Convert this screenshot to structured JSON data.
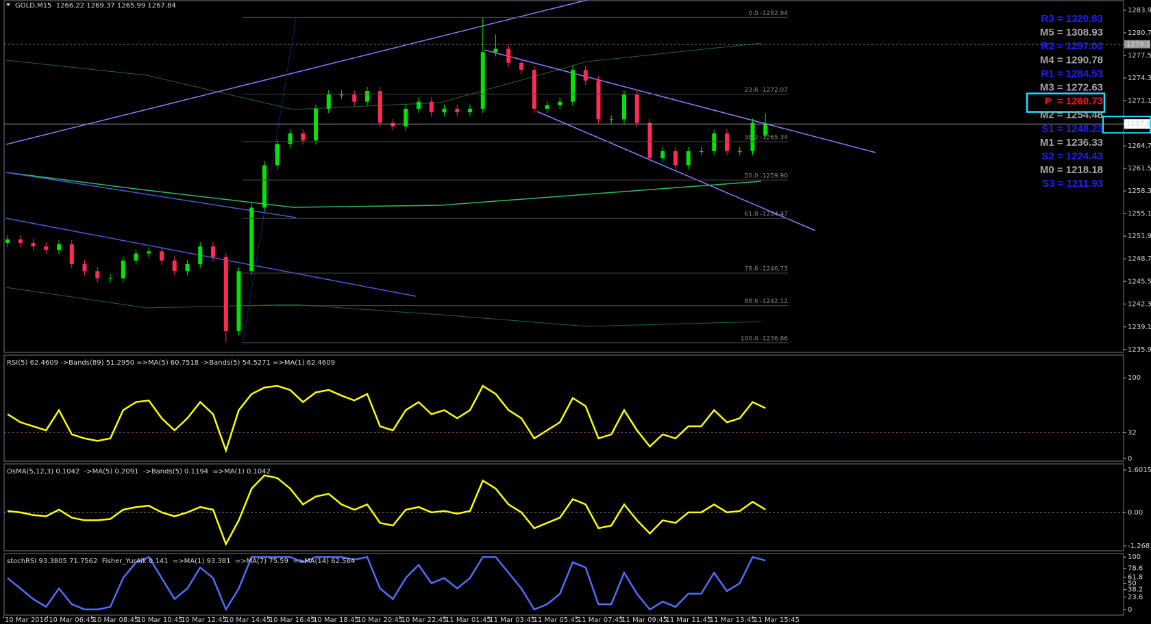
{
  "chart_data": [
    {
      "type": "candlestick",
      "title": "GOLD,M15  1266.22 1269.37 1265.99 1267.84",
      "ylim": [
        1235.4,
        1285.4
      ],
      "yticks": [
        1283.95,
        1280.75,
        1277.55,
        1274.35,
        1271.15,
        1267.95,
        1264.75,
        1261.55,
        1258.35,
        1255.15,
        1251.95,
        1248.75,
        1245.55,
        1242.35,
        1239.1,
        1235.9
      ],
      "bull_color": "#00e600",
      "bear_color": "#ff2a55",
      "open": [
        1251.0,
        1251.5,
        1251,
        1250.5,
        1250,
        1250.8,
        1248,
        1247,
        1246,
        1246,
        1248.5,
        1249.5,
        1249.8,
        1248.5,
        1247,
        1248,
        1250.5,
        1249,
        1238.5,
        1247,
        1256,
        1262,
        1265,
        1266.5,
        1265.5,
        1270,
        1272,
        1272,
        1271,
        1272.5,
        1268,
        1267.5,
        1270,
        1271,
        1269.5,
        1270,
        1269.5,
        1270,
        1278,
        1278.5,
        1276.5,
        1275.5,
        1270,
        1270.5,
        1271,
        1275.5,
        1274,
        1268.5,
        1268.5,
        1272,
        1268,
        1263,
        1264,
        1262,
        1264,
        1264,
        1266.5,
        1264,
        1264,
        1266.22
      ],
      "high": [
        1252.1,
        1252.1,
        1251.6,
        1251.1,
        1251.4,
        1251.4,
        1248.6,
        1247.6,
        1246.6,
        1249.1,
        1250.1,
        1250.4,
        1250.4,
        1249.1,
        1248.6,
        1251.1,
        1251.1,
        1249.6,
        1247.6,
        1256.6,
        1262.6,
        1265.6,
        1267.1,
        1267.1,
        1270.6,
        1272.6,
        1272.6,
        1272.6,
        1273.1,
        1273.1,
        1268.6,
        1270.6,
        1271.6,
        1271.6,
        1270.6,
        1270.6,
        1270.6,
        1282.9,
        1280.5,
        1279.1,
        1277.1,
        1276.1,
        1271.1,
        1271.6,
        1276.1,
        1276.1,
        1274.6,
        1269.1,
        1272.6,
        1272.6,
        1268.6,
        1264.6,
        1264.6,
        1264.6,
        1264.6,
        1267.1,
        1267.1,
        1264.6,
        1268.6,
        1269.37
      ],
      "low": [
        1250.4,
        1250.4,
        1249.9,
        1249.4,
        1249.4,
        1247.4,
        1246.4,
        1245.4,
        1245.4,
        1245.4,
        1247.9,
        1248.9,
        1247.9,
        1246.4,
        1246.4,
        1247.4,
        1248.4,
        1236.9,
        1237.9,
        1246.4,
        1255.4,
        1261.4,
        1264.4,
        1264.9,
        1264.9,
        1269.4,
        1271.4,
        1270.4,
        1270.4,
        1267.4,
        1266.9,
        1266.9,
        1269.4,
        1268.9,
        1268.9,
        1268.9,
        1268.9,
        1269.4,
        1277.4,
        1275.9,
        1274.9,
        1269.4,
        1269.4,
        1269.9,
        1270.4,
        1273.4,
        1267.9,
        1267.9,
        1267.9,
        1267.4,
        1262.4,
        1262.4,
        1261.4,
        1261.4,
        1263.4,
        1263.4,
        1263.4,
        1263.4,
        1263.4,
        1265.99
      ],
      "close": [
        1251.5,
        1251,
        1250.5,
        1250,
        1250.8,
        1248,
        1247,
        1246,
        1246,
        1248.5,
        1249.5,
        1249.8,
        1248.5,
        1247,
        1248,
        1250.5,
        1249,
        1238.5,
        1247,
        1256,
        1262,
        1265,
        1266.5,
        1265.5,
        1270,
        1272,
        1272,
        1271,
        1272.5,
        1268,
        1267.5,
        1270,
        1271,
        1269.5,
        1270,
        1269.5,
        1270,
        1278,
        1278.5,
        1276.5,
        1275.5,
        1270,
        1270.5,
        1271,
        1275.5,
        1274,
        1268.5,
        1268.5,
        1272,
        1268,
        1263,
        1264,
        1262,
        1264,
        1264,
        1266.5,
        1264,
        1264,
        1268,
        1267.84
      ],
      "current_price": {
        "value": 1267.84,
        "label": "1267.84"
      },
      "level_line": {
        "value": 1279.14,
        "label": "1279.14"
      },
      "fib_levels": [
        {
          "price": 1282.94,
          "label": "0.0 -1282.94"
        },
        {
          "price": 1272.07,
          "label": "23.6 -1272.07"
        },
        {
          "price": 1265.34,
          "label": "38.2 -1265.34"
        },
        {
          "price": 1259.9,
          "label": "50.0 -1259.90"
        },
        {
          "price": 1254.47,
          "label": "61.8 -1254.47"
        },
        {
          "price": 1246.73,
          "label": "78.6 -1246.73"
        },
        {
          "price": 1242.12,
          "label": "88.6 -1242.12"
        },
        {
          "price": 1236.86,
          "label": "100.0 -1236.86"
        }
      ],
      "pivots": [
        {
          "label": "R3 = 1320.83",
          "color": "#1f1fff"
        },
        {
          "label": "M5 = 1308.93",
          "color": "#a6a6a6"
        },
        {
          "label": "R2 = 1297.03",
          "color": "#1f1fff"
        },
        {
          "label": "M4 = 1290.78",
          "color": "#a6a6a6"
        },
        {
          "label": "R1 = 1284.53",
          "color": "#1f1fff"
        },
        {
          "label": "M3 = 1272.63",
          "color": "#a6a6a6"
        },
        {
          "label": "P  = 1260.73",
          "color": "#ff1010",
          "boxed": true
        },
        {
          "label": "M2 = 1254.48",
          "color": "#a6a6a6"
        },
        {
          "label": "S1 = 1248.23",
          "color": "#1f1fff"
        },
        {
          "label": "M1 = 1236.33",
          "color": "#a6a6a6"
        },
        {
          "label": "S2 = 1224.43",
          "color": "#1f1fff"
        },
        {
          "label": "M0 = 1218.18",
          "color": "#a6a6a6"
        },
        {
          "label": "S3 = 1211.93",
          "color": "#1f1fff"
        }
      ],
      "xtick_labels": [
        "10 Mar 2016",
        "10 Mar 06:45",
        "10 Mar 08:45",
        "10 Mar 10:45",
        "10 Mar 12:45",
        "10 Mar 14:45",
        "10 Mar 16:45",
        "10 Mar 18:45",
        "10 Mar 20:45",
        "10 Mar 22:45",
        "11 Mar 01:45",
        "11 Mar 03:45",
        "11 Mar 05:45",
        "11 Mar 07:45",
        "11 Mar 09:45",
        "11 Mar 11:45",
        "11 Mar 13:45",
        "11 Mar 15:45"
      ]
    },
    {
      "type": "line",
      "title": "RSI(5) 62.4609 ->Bands(89) 51.2950 =>MA(5) 60.7518 ->Bands(5) 54.5271 =>MA(1) 62.4609",
      "ylim": [
        -4,
        129
      ],
      "yticks": [
        100,
        32,
        0
      ],
      "inner_tick_lines": true,
      "series": [
        {
          "color": "#ffff00",
          "values": [
            55,
            45,
            40,
            35,
            60,
            30,
            25,
            22,
            25,
            60,
            70,
            72,
            50,
            35,
            50,
            70,
            55,
            10,
            60,
            80,
            88,
            90,
            85,
            70,
            82,
            85,
            78,
            72,
            80,
            40,
            35,
            60,
            70,
            55,
            60,
            50,
            60,
            90,
            80,
            60,
            50,
            25,
            35,
            45,
            75,
            65,
            25,
            30,
            60,
            35,
            15,
            30,
            25,
            40,
            40,
            60,
            45,
            50,
            70,
            62.46
          ]
        }
      ]
    },
    {
      "type": "line",
      "title": "OsMA(5,12,3) 0.1042  ->MA(5) 0.2091  ->Bands(5) 0.1194  =>MA(1) 0.1042",
      "ylim": [
        -1.48,
        1.86
      ],
      "yticks": [
        1.6015,
        {
          "value": 0,
          "label": "0.00"
        },
        -1.2681
      ],
      "inner_tick_lines": true,
      "series": [
        {
          "color": "#ffff00",
          "values": [
            0.05,
            0,
            -0.1,
            -0.15,
            0.1,
            -0.2,
            -0.3,
            -0.3,
            -0.25,
            0.1,
            0.2,
            0.25,
            0,
            -0.15,
            0,
            0.2,
            0.1,
            -1.2,
            -0.3,
            0.9,
            1.4,
            1.3,
            0.9,
            0.3,
            0.6,
            0.7,
            0.3,
            0.1,
            0.3,
            -0.4,
            -0.5,
            0.1,
            0.2,
            0,
            0.05,
            -0.05,
            0.05,
            1.2,
            0.9,
            0.3,
            0,
            -0.6,
            -0.4,
            -0.2,
            0.5,
            0.3,
            -0.6,
            -0.5,
            0.3,
            -0.3,
            -0.8,
            -0.3,
            -0.4,
            0,
            0,
            0.3,
            0,
            0.05,
            0.4,
            0.1042
          ]
        }
      ]
    },
    {
      "type": "line",
      "title": "stochRSI 93.3805 71.7562  Fisher_Yur4ik 0.141  =>MA(1) 93.381  =>MA(7) 75.59  =>MA(14) 62.564",
      "ylim": [
        -12,
        108
      ],
      "yticks": [
        100,
        78.6,
        61.8,
        50,
        38.2,
        23.6,
        0
      ],
      "series": [
        {
          "color": "#4f6fff",
          "values": [
            60,
            40,
            20,
            5,
            40,
            10,
            0,
            0,
            5,
            60,
            90,
            100,
            60,
            20,
            40,
            80,
            60,
            0,
            40,
            100,
            100,
            100,
            100,
            90,
            100,
            100,
            100,
            95,
            100,
            40,
            20,
            60,
            85,
            50,
            60,
            40,
            60,
            100,
            100,
            70,
            40,
            0,
            10,
            30,
            90,
            80,
            10,
            10,
            70,
            30,
            0,
            15,
            5,
            30,
            30,
            70,
            35,
            50,
            100,
            93.38
          ]
        }
      ]
    }
  ]
}
